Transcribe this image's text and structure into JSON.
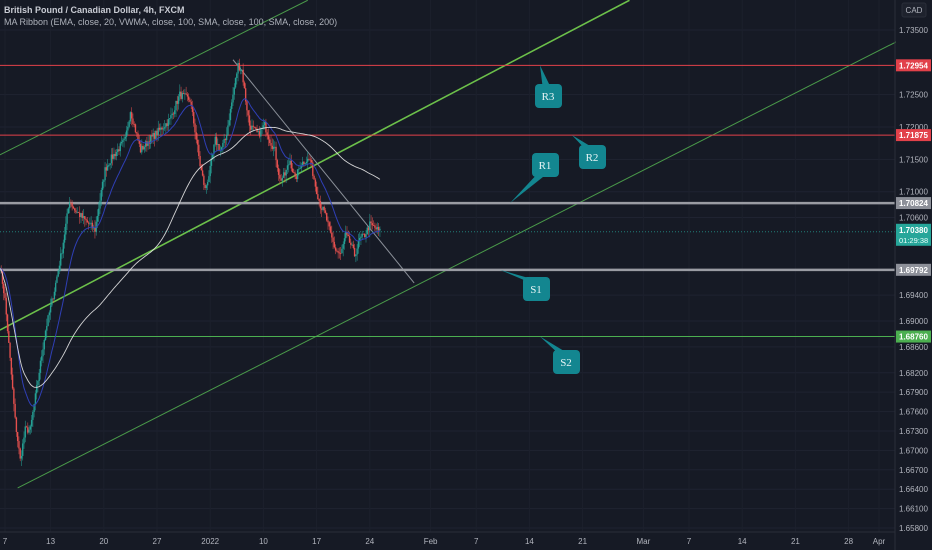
{
  "header": {
    "title": "British Pound / Canadian Dollar, 4h, FXCM",
    "indicator": "MA Ribbon (EMA, close, 20, VWMA, close, 100, SMA, close, 100, SMA, close, 200)",
    "currency": "CAD"
  },
  "colors": {
    "background": "#161a25",
    "up": "#26a69a",
    "down": "#ef5350",
    "ema": "#2f3fb5",
    "sma200": "#e8e8e8",
    "resistance": "#e2414a",
    "support_grey": "#9a9ca3",
    "support_green": "#4caf50",
    "channel": "#5cb85c",
    "callout": "#138690"
  },
  "chart_data": {
    "type": "candlestick",
    "symbol": "GBPCAD",
    "timeframe": "4h",
    "ylim": [
      1.658,
      1.735
    ],
    "y_ticks": [
      "1.73500",
      "1.72500",
      "1.72000",
      "1.71500",
      "1.71000",
      "1.70600",
      "1.69400",
      "1.69000",
      "1.68600",
      "1.68200",
      "1.67900",
      "1.67600",
      "1.67300",
      "1.67000",
      "1.66700",
      "1.66400",
      "1.66100",
      "1.65800"
    ],
    "x_ticks": [
      {
        "label": "7",
        "date": "2021-12-07"
      },
      {
        "label": "13",
        "date": "2021-12-13"
      },
      {
        "label": "20",
        "date": "2021-12-20"
      },
      {
        "label": "27",
        "date": "2021-12-27"
      },
      {
        "label": "2022",
        "date": "2022-01-03"
      },
      {
        "label": "10",
        "date": "2022-01-10"
      },
      {
        "label": "17",
        "date": "2022-01-17"
      },
      {
        "label": "24",
        "date": "2022-01-24"
      },
      {
        "label": "Feb",
        "date": "2022-02-01"
      },
      {
        "label": "7",
        "date": "2022-02-07"
      },
      {
        "label": "14",
        "date": "2022-02-14"
      },
      {
        "label": "21",
        "date": "2022-02-21"
      },
      {
        "label": "Mar",
        "date": "2022-03-01"
      },
      {
        "label": "7",
        "date": "2022-03-07"
      },
      {
        "label": "14",
        "date": "2022-03-14"
      },
      {
        "label": "21",
        "date": "2022-03-21"
      },
      {
        "label": "28",
        "date": "2022-03-28"
      },
      {
        "label": "Apr",
        "date": "2022-04-01"
      }
    ],
    "price_path": [
      [
        "2021-12-06T08",
        1.6987
      ],
      [
        "2021-12-07T00",
        1.6933
      ],
      [
        "2021-12-07T16",
        1.684
      ],
      [
        "2021-12-08T08",
        1.6747
      ],
      [
        "2021-12-09T00",
        1.6685
      ],
      [
        "2021-12-09T16",
        1.6732
      ],
      [
        "2021-12-10T08",
        1.6732
      ],
      [
        "2021-12-11T08",
        1.6809
      ],
      [
        "2021-12-12T08",
        1.6886
      ],
      [
        "2021-12-13T12",
        1.6948
      ],
      [
        "2021-12-14T12",
        1.701
      ],
      [
        "2021-12-15T12",
        1.7087
      ],
      [
        "2021-12-16T04",
        1.7072
      ],
      [
        "2021-12-17T12",
        1.7056
      ],
      [
        "2021-12-18T20",
        1.7041
      ],
      [
        "2021-12-20T04",
        1.7134
      ],
      [
        "2021-12-20T20",
        1.7149
      ],
      [
        "2021-12-22T20",
        1.718
      ],
      [
        "2021-12-23T12",
        1.7226
      ],
      [
        "2021-12-24T20",
        1.7164
      ],
      [
        "2021-12-26T00",
        1.718
      ],
      [
        "2021-12-27T08",
        1.7195
      ],
      [
        "2021-12-28T16",
        1.7211
      ],
      [
        "2021-12-30T00",
        1.725
      ],
      [
        "2021-12-31T08",
        1.7242
      ],
      [
        "2022-01-01T00",
        1.7195
      ],
      [
        "2022-01-01T16",
        1.7141
      ],
      [
        "2022-01-02T08",
        1.7103
      ],
      [
        "2022-01-03T00",
        1.7134
      ],
      [
        "2022-01-03T16",
        1.718
      ],
      [
        "2022-01-04T08",
        1.7164
      ],
      [
        "2022-01-05T00",
        1.718
      ],
      [
        "2022-01-05T16",
        1.7226
      ],
      [
        "2022-01-06T16",
        1.7296
      ],
      [
        "2022-01-07T04",
        1.7288
      ],
      [
        "2022-01-07T16",
        1.7242
      ],
      [
        "2022-01-08T04",
        1.7203
      ],
      [
        "2022-01-09T08",
        1.7188
      ],
      [
        "2022-01-10T04",
        1.7203
      ],
      [
        "2022-01-10T20",
        1.718
      ],
      [
        "2022-01-11T12",
        1.7164
      ],
      [
        "2022-01-12T04",
        1.7118
      ],
      [
        "2022-01-12T20",
        1.7126
      ],
      [
        "2022-01-13T12",
        1.7149
      ],
      [
        "2022-01-14T04",
        1.7118
      ],
      [
        "2022-01-14T20",
        1.7141
      ],
      [
        "2022-01-15T12",
        1.7149
      ],
      [
        "2022-01-16T04",
        1.7149
      ],
      [
        "2022-01-16T20",
        1.711
      ],
      [
        "2022-01-17T12",
        1.7079
      ],
      [
        "2022-01-18T04",
        1.7064
      ],
      [
        "2022-01-18T20",
        1.7033
      ],
      [
        "2022-01-19T12",
        1.701
      ],
      [
        "2022-01-20T04",
        1.7002
      ],
      [
        "2022-01-20T20",
        1.7033
      ],
      [
        "2022-01-21T12",
        1.7018
      ],
      [
        "2022-01-22T00",
        1.7002
      ],
      [
        "2022-01-22T16",
        1.7026
      ],
      [
        "2022-01-23T08",
        1.7033
      ],
      [
        "2022-01-24T00",
        1.7049
      ],
      [
        "2022-01-24T16",
        1.7044
      ],
      [
        "2022-01-25T08",
        1.7038
      ]
    ],
    "levels": [
      {
        "name": "R3",
        "price": 1.72954,
        "label": "1.72954",
        "color": "#e2414a",
        "width": 1
      },
      {
        "name": "R2",
        "price": 1.71875,
        "label": "1.71875",
        "color": "#e2414a",
        "width": 1
      },
      {
        "name": "R1",
        "price": 1.70824,
        "label": "1.70824",
        "color": "#9a9ca3",
        "width": 2.5
      },
      {
        "name": "S1",
        "price": 1.69792,
        "label": "1.69792",
        "color": "#9a9ca3",
        "width": 2.5
      },
      {
        "name": "S2",
        "price": 1.6876,
        "label": "1.68760",
        "color": "#4caf50",
        "width": 1
      }
    ],
    "last_price": {
      "price": 1.7038,
      "label": "1.70380",
      "countdown": "01:29:38",
      "color": "#26a69a"
    },
    "trend_lines": [
      {
        "from": [
          "2021-12-06T08",
          1.7157
        ],
        "to": [
          "2022-01-15T20",
          1.7396
        ],
        "color": "#4a9a4a",
        "width": 1
      },
      {
        "from": [
          "2021-12-06T08",
          1.6886
        ],
        "to": [
          "2022-02-27T04",
          1.7396
        ],
        "color": "#6cc04a",
        "width": 1.6
      },
      {
        "from": [
          "2021-12-08T16",
          1.6642
        ],
        "to": [
          "2022-04-06T08",
          1.735
        ],
        "color": "#4a9a4a",
        "width": 1
      },
      {
        "from": [
          "2022-01-06T00",
          1.7304
        ],
        "to": [
          "2022-01-29T20",
          1.6959
        ],
        "color": "#8a8f98",
        "width": 1
      }
    ],
    "callouts": [
      "R3",
      "R2",
      "R1",
      "S1",
      "S2"
    ]
  }
}
